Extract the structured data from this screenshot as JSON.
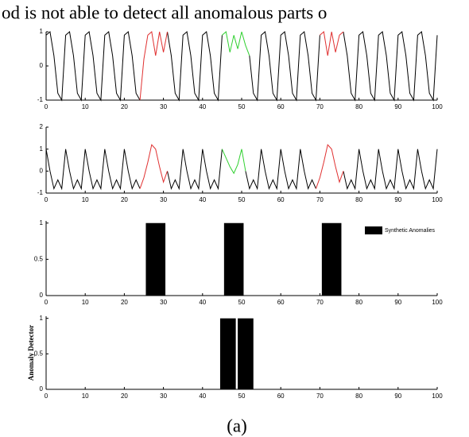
{
  "header_text": "od is not able to detect all anomalous parts o",
  "caption": "(a)",
  "chart_data": [
    {
      "type": "line",
      "xlim": [
        0,
        100
      ],
      "ylim": [
        -1,
        1
      ],
      "xticks": [
        0,
        10,
        20,
        30,
        40,
        50,
        60,
        70,
        80,
        90,
        100
      ],
      "yticks": [
        -1,
        0,
        1
      ],
      "x": [
        0,
        1,
        2,
        3,
        4,
        5,
        6,
        7,
        8,
        9,
        10,
        11,
        12,
        13,
        14,
        15,
        16,
        17,
        18,
        19,
        20,
        21,
        22,
        23,
        24,
        25,
        26,
        27,
        28,
        29,
        30,
        31,
        32,
        33,
        34,
        35,
        36,
        37,
        38,
        39,
        40,
        41,
        42,
        43,
        44,
        45,
        46,
        47,
        48,
        49,
        50,
        51,
        52,
        53,
        54,
        55,
        56,
        57,
        58,
        59,
        60,
        61,
        62,
        63,
        64,
        65,
        66,
        67,
        68,
        69,
        70,
        71,
        72,
        73,
        74,
        75,
        76,
        77,
        78,
        79,
        80,
        81,
        82,
        83,
        84,
        85,
        86,
        87,
        88,
        89,
        90,
        91,
        92,
        93,
        94,
        95,
        96,
        97,
        98,
        99,
        100
      ],
      "series": [
        {
          "color": "#000000",
          "values": [
            0.9,
            1,
            0.3,
            -0.8,
            -1,
            0.9,
            1,
            0.3,
            -0.8,
            -1,
            0.9,
            1,
            0.3,
            -0.8,
            -1,
            0.9,
            1,
            0.3,
            -0.8,
            -1,
            0.9,
            1,
            0.3,
            -0.8,
            -1,
            null,
            null,
            null,
            null,
            null,
            null,
            1,
            0.3,
            -0.8,
            -1,
            0.9,
            1,
            0.3,
            -0.8,
            -1,
            0.9,
            1,
            0.3,
            -0.8,
            -1,
            0.9,
            null,
            null,
            null,
            null,
            null,
            null,
            0.3,
            -0.8,
            -1,
            0.9,
            1,
            0.3,
            -0.8,
            -1,
            0.9,
            1,
            0.3,
            -0.8,
            -1,
            0.9,
            1,
            0.3,
            -0.8,
            -1,
            0.9,
            null,
            null,
            null,
            null,
            null,
            1,
            0.3,
            -0.8,
            -1,
            0.9,
            1,
            0.3,
            -0.8,
            -1,
            0.9,
            1,
            0.3,
            -0.8,
            -1,
            0.9,
            1,
            0.3,
            -0.8,
            -1,
            0.9,
            1,
            0.3,
            -0.8,
            -1,
            0.9
          ]
        },
        {
          "color": "#e03030",
          "x": [
            24,
            25,
            26,
            27,
            28,
            29,
            30,
            31
          ],
          "values": [
            -1,
            0.2,
            0.9,
            1,
            0.3,
            1,
            0.4,
            1
          ]
        },
        {
          "color": "#30d030",
          "x": [
            45,
            46,
            47,
            48,
            49,
            50,
            51,
            52
          ],
          "values": [
            0.9,
            1,
            0.4,
            0.9,
            0.5,
            1,
            0.6,
            0.3
          ]
        },
        {
          "color": "#e03030",
          "x": [
            70,
            71,
            72,
            73,
            74,
            75,
            76
          ],
          "values": [
            0.9,
            1,
            0.3,
            1,
            0.4,
            0.9,
            1
          ]
        }
      ]
    },
    {
      "type": "line",
      "xlim": [
        0,
        100
      ],
      "ylim": [
        -1,
        2
      ],
      "xticks": [
        0,
        10,
        20,
        30,
        40,
        50,
        60,
        70,
        80,
        90,
        100
      ],
      "yticks": [
        -1,
        0,
        1,
        2
      ],
      "x": [
        0,
        1,
        2,
        3,
        4,
        5,
        6,
        7,
        8,
        9,
        10,
        11,
        12,
        13,
        14,
        15,
        16,
        17,
        18,
        19,
        20,
        21,
        22,
        23,
        24,
        25,
        26,
        27,
        28,
        29,
        30,
        31,
        32,
        33,
        34,
        35,
        36,
        37,
        38,
        39,
        40,
        41,
        42,
        43,
        44,
        45,
        46,
        47,
        48,
        49,
        50,
        51,
        52,
        53,
        54,
        55,
        56,
        57,
        58,
        59,
        60,
        61,
        62,
        63,
        64,
        65,
        66,
        67,
        68,
        69,
        70,
        71,
        72,
        73,
        74,
        75,
        76,
        77,
        78,
        79,
        80,
        81,
        82,
        83,
        84,
        85,
        86,
        87,
        88,
        89,
        90,
        91,
        92,
        93,
        94,
        95,
        96,
        97,
        98,
        99,
        100
      ],
      "series": [
        {
          "color": "#000000",
          "values": [
            1,
            0,
            -0.8,
            -0.4,
            -0.8,
            1,
            0,
            -0.8,
            -0.4,
            -0.8,
            1,
            0,
            -0.8,
            -0.4,
            -0.8,
            1,
            0,
            -0.8,
            -0.4,
            -0.8,
            1,
            0,
            -0.8,
            -0.4,
            -0.8,
            null,
            null,
            null,
            null,
            null,
            null,
            0,
            -0.8,
            -0.4,
            -0.8,
            1,
            0,
            -0.8,
            -0.4,
            -0.8,
            1,
            0,
            -0.8,
            -0.4,
            -0.8,
            1,
            null,
            null,
            null,
            null,
            null,
            0,
            -0.8,
            -0.4,
            -0.8,
            1,
            0,
            -0.8,
            -0.4,
            -0.8,
            1,
            0,
            -0.8,
            -0.4,
            -0.8,
            1,
            0,
            -0.8,
            -0.4,
            -0.8,
            null,
            null,
            null,
            null,
            null,
            null,
            0,
            -0.8,
            -0.4,
            -0.8,
            1,
            0,
            -0.8,
            -0.4,
            -0.8,
            1,
            0,
            -0.8,
            -0.4,
            -0.8,
            1,
            0,
            -0.8,
            -0.4,
            -0.8,
            1,
            0,
            -0.8,
            -0.4,
            -0.8,
            1
          ]
        },
        {
          "color": "#e03030",
          "x": [
            24,
            25,
            26,
            27,
            28,
            29,
            30,
            31
          ],
          "values": [
            -0.8,
            -0.3,
            0.4,
            1.2,
            1,
            0.2,
            -0.5,
            0
          ]
        },
        {
          "color": "#30d030",
          "x": [
            45,
            46,
            47,
            48,
            49,
            50,
            51
          ],
          "values": [
            1,
            0.6,
            0.2,
            -0.1,
            0.3,
            1,
            0
          ]
        },
        {
          "color": "#e03030",
          "x": [
            69,
            70,
            71,
            72,
            73,
            74,
            75,
            76
          ],
          "values": [
            -0.8,
            -0.3,
            0.4,
            1.2,
            1,
            0.2,
            -0.5,
            0
          ]
        }
      ]
    },
    {
      "type": "bar",
      "xlim": [
        0,
        100
      ],
      "ylim": [
        0,
        1.03
      ],
      "xticks": [
        0,
        10,
        20,
        30,
        40,
        50,
        60,
        70,
        80,
        90,
        100
      ],
      "yticks": [
        0,
        0.5,
        1
      ],
      "legend": "upper right",
      "series": [
        {
          "name": "Synthetic Anomalies",
          "color": "#000000",
          "bar_edges": [
            [
              25.5,
              30.5
            ],
            [
              45.5,
              50.5
            ],
            [
              70.5,
              75.5
            ]
          ],
          "values": [
            1,
            1,
            1
          ]
        }
      ]
    },
    {
      "type": "bar",
      "xlim": [
        0,
        100
      ],
      "ylim": [
        0,
        1.03
      ],
      "xticks": [
        0,
        10,
        20,
        30,
        40,
        50,
        60,
        70,
        80,
        90,
        100
      ],
      "yticks": [
        0,
        0.5,
        1
      ],
      "ylabel": "Anomaly Detector",
      "series": [
        {
          "color": "#000000",
          "bar_edges": [
            [
              44.5,
              48.5
            ],
            [
              49,
              53
            ]
          ],
          "values": [
            1,
            1
          ]
        }
      ]
    }
  ]
}
